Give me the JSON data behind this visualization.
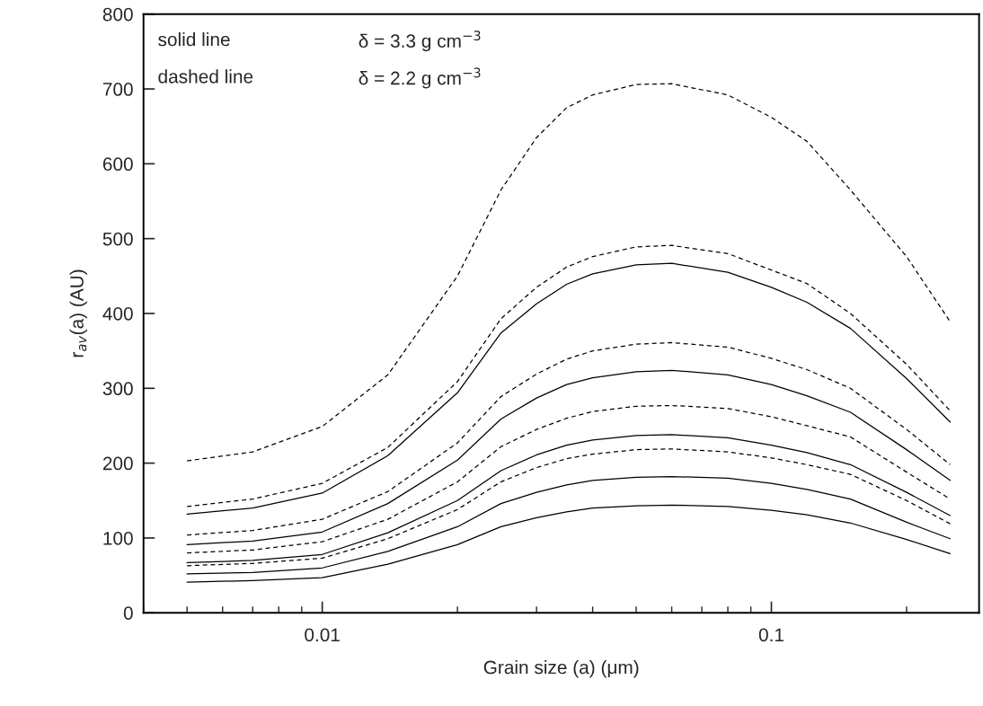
{
  "chart_data": {
    "type": "line",
    "xlabel": "Grain size (a) (μm)",
    "ylabel": "r$_{av}$(a) (AU)",
    "annotations": [
      "solid line",
      "δ = 3.3 g cm$^{−3}$",
      "dashed line",
      "δ = 2.2 g cm$^{−3}$"
    ],
    "log": "x",
    "xlim": [
      0.004,
      0.29
    ],
    "xticks": [
      0.01,
      0.1
    ],
    "ylim": [
      0,
      800
    ],
    "yticks": [
      0,
      100,
      200,
      300,
      400,
      500,
      600,
      700,
      800
    ],
    "x": [
      0.005,
      0.007,
      0.01,
      0.014,
      0.02,
      0.025,
      0.03,
      0.035,
      0.04,
      0.05,
      0.06,
      0.08,
      0.1,
      0.12,
      0.15,
      0.2,
      0.25
    ],
    "series": [
      {
        "color": "#000000",
        "line_style": "dashed",
        "values": [
          203,
          215,
          249,
          318,
          450,
          565,
          635,
          675,
          692,
          706,
          707,
          692,
          662,
          630,
          565,
          476,
          389
        ]
      },
      {
        "color": "#000000",
        "line_style": "dashed",
        "values": [
          142,
          152,
          173,
          221,
          309,
          393,
          435,
          462,
          476,
          489,
          491,
          480,
          458,
          440,
          400,
          332,
          270
        ]
      },
      {
        "color": "#000000",
        "line_style": "solid",
        "values": [
          132,
          140,
          160,
          210,
          294,
          374,
          413,
          439,
          453,
          465,
          467,
          455,
          435,
          415,
          380,
          313,
          255
        ]
      },
      {
        "color": "#000000",
        "line_style": "dashed",
        "values": [
          104,
          110,
          125,
          162,
          227,
          289,
          319,
          339,
          350,
          359,
          361,
          355,
          340,
          325,
          300,
          245,
          198
        ]
      },
      {
        "color": "#000000",
        "line_style": "solid",
        "values": [
          91,
          96,
          108,
          146,
          204,
          259,
          287,
          305,
          314,
          322,
          324,
          318,
          305,
          290,
          268,
          218,
          177
        ]
      },
      {
        "color": "#000000",
        "line_style": "dashed",
        "values": [
          80,
          84,
          95,
          125,
          175,
          222,
          245,
          260,
          269,
          276,
          277,
          273,
          262,
          250,
          235,
          188,
          152
        ]
      },
      {
        "color": "#000000",
        "line_style": "solid",
        "values": [
          67,
          70,
          78,
          107,
          150,
          190,
          211,
          224,
          231,
          237,
          238,
          234,
          224,
          214,
          198,
          161,
          130
        ]
      },
      {
        "color": "#000000",
        "line_style": "dashed",
        "values": [
          63,
          66,
          73,
          99,
          138,
          175,
          194,
          206,
          212,
          218,
          219,
          215,
          207,
          198,
          185,
          150,
          119
        ]
      },
      {
        "color": "#000000",
        "line_style": "solid",
        "values": [
          52,
          54,
          60,
          82,
          115,
          146,
          161,
          171,
          177,
          181,
          182,
          180,
          173,
          165,
          152,
          121,
          99
        ]
      },
      {
        "color": "#000000",
        "line_style": "solid",
        "values": [
          41,
          43,
          47,
          65,
          91,
          115,
          127,
          135,
          140,
          143,
          144,
          142,
          137,
          131,
          120,
          98,
          79
        ]
      }
    ]
  }
}
